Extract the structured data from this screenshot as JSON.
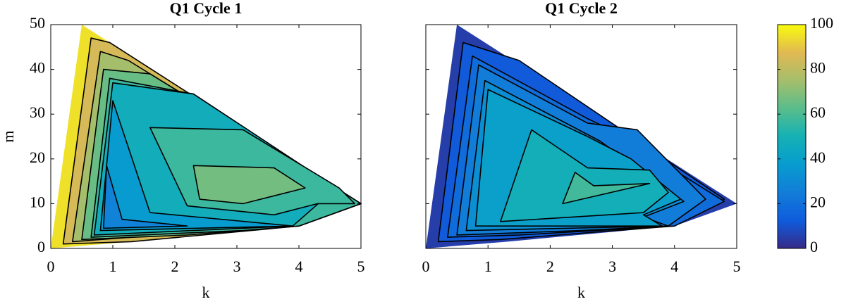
{
  "chart_data": [
    {
      "type": "contour",
      "title": "Q1 Cycle 1",
      "xlabel": "k",
      "ylabel": "m",
      "xlim": [
        0,
        5
      ],
      "ylim": [
        0,
        50
      ],
      "xticks": [
        0,
        1,
        2,
        3,
        4,
        5
      ],
      "yticks": [
        0,
        10,
        20,
        30,
        40,
        50
      ],
      "show_ytick_labels": true,
      "regions": [
        {
          "level": 95,
          "polygon": [
            [
              0,
              0
            ],
            [
              0.5,
              50
            ],
            [
              5,
              10
            ],
            [
              4,
              5
            ],
            [
              1.3,
              1.5
            ]
          ]
        },
        {
          "level": 85,
          "polygon": [
            [
              0.2,
              1
            ],
            [
              0.65,
              47
            ],
            [
              0.95,
              46
            ],
            [
              5,
              10
            ],
            [
              4,
              5
            ],
            [
              1.3,
              1.5
            ]
          ]
        },
        {
          "level": 75,
          "polygon": [
            [
              0.35,
              1.5
            ],
            [
              0.8,
              44
            ],
            [
              1.25,
              42
            ],
            [
              5,
              10
            ],
            [
              4,
              5
            ],
            [
              1.3,
              2.5
            ]
          ]
        },
        {
          "level": 65,
          "polygon": [
            [
              0.5,
              2
            ],
            [
              0.85,
              40
            ],
            [
              1.6,
              39
            ],
            [
              5,
              10
            ],
            [
              4,
              5
            ],
            [
              2.2,
              3
            ]
          ]
        },
        {
          "level": 57,
          "polygon": [
            [
              0.65,
              2.5
            ],
            [
              0.95,
              38
            ],
            [
              2.3,
              34.5
            ],
            [
              4.6,
              13.5
            ],
            [
              5,
              10
            ],
            [
              4,
              5
            ],
            [
              3.1,
              4
            ]
          ]
        },
        {
          "level": 47,
          "polygon": [
            [
              0.7,
              3
            ],
            [
              1,
              37
            ],
            [
              2.3,
              34.5
            ],
            [
              4.6,
              13.5
            ],
            [
              3.9,
              5
            ],
            [
              1.5,
              3.5
            ]
          ]
        },
        {
          "level": 37,
          "polygon": [
            [
              0.8,
              4
            ],
            [
              1,
              33
            ],
            [
              1.6,
              8
            ],
            [
              3.9,
              5
            ]
          ]
        },
        {
          "level": 27,
          "polygon": [
            [
              0.85,
              4.5
            ],
            [
              0.9,
              18.5
            ],
            [
              1.15,
              6.5
            ],
            [
              2.2,
              5
            ]
          ]
        },
        {
          "level": 57,
          "polygon": [
            [
              1.6,
              27
            ],
            [
              3.1,
              26.5
            ],
            [
              4.65,
              13.5
            ],
            [
              4.9,
              10
            ],
            [
              4.3,
              10
            ],
            [
              3.6,
              7.5
            ],
            [
              2.2,
              9.5
            ]
          ]
        },
        {
          "level": 67,
          "polygon": [
            [
              2.3,
              18.5
            ],
            [
              3.6,
              18
            ],
            [
              4.1,
              13.5
            ],
            [
              3.1,
              10
            ],
            [
              2.4,
              11
            ]
          ]
        }
      ]
    },
    {
      "type": "contour",
      "title": "Q1 Cycle 2",
      "xlabel": "k",
      "xlim": [
        0,
        5
      ],
      "ylim": [
        0,
        50
      ],
      "xticks": [
        0,
        1,
        2,
        3,
        4,
        5
      ],
      "yticks": [
        0,
        10,
        20,
        30,
        40,
        50
      ],
      "show_ytick_labels": false,
      "regions": [
        {
          "level": 5,
          "polygon": [
            [
              0,
              0
            ],
            [
              0.5,
              50
            ],
            [
              5,
              10
            ],
            [
              4,
              5
            ],
            [
              1.3,
              1.5
            ]
          ]
        },
        {
          "level": 12,
          "polygon": [
            [
              0.2,
              1.5
            ],
            [
              0.6,
              46
            ],
            [
              1.5,
              42
            ],
            [
              4.8,
              11
            ],
            [
              4,
              5
            ],
            [
              1.2,
              2
            ]
          ]
        },
        {
          "level": 18,
          "polygon": [
            [
              0.35,
              2.5
            ],
            [
              0.75,
              43
            ],
            [
              2.6,
              29
            ],
            [
              2.9,
              27
            ],
            [
              4.8,
              10.5
            ],
            [
              4,
              5
            ],
            [
              1.5,
              3
            ]
          ]
        },
        {
          "level": 25,
          "polygon": [
            [
              0.5,
              3
            ],
            [
              0.85,
              41
            ],
            [
              2.6,
              28
            ],
            [
              3.4,
              26.5
            ],
            [
              4.5,
              11
            ],
            [
              3.9,
              5
            ],
            [
              2.5,
              4
            ]
          ]
        },
        {
          "level": 32,
          "polygon": [
            [
              0.65,
              4
            ],
            [
              0.95,
              37.5
            ],
            [
              2.8,
              24
            ],
            [
              4.15,
              10.5
            ],
            [
              3.5,
              7
            ],
            [
              3.9,
              5
            ]
          ]
        },
        {
          "level": 40,
          "polygon": [
            [
              0.8,
              5
            ],
            [
              1,
              35.5
            ],
            [
              2.6,
              25
            ],
            [
              3.3,
              20
            ],
            [
              4.1,
              11
            ],
            [
              3.5,
              7.5
            ],
            [
              3.8,
              5
            ]
          ]
        },
        {
          "level": 48,
          "polygon": [
            [
              1.2,
              6
            ],
            [
              1.7,
              26.5
            ],
            [
              2.6,
              18
            ],
            [
              3.6,
              17.5
            ],
            [
              3.9,
              12.5
            ],
            [
              3.5,
              8
            ]
          ]
        },
        {
          "level": 58,
          "polygon": [
            [
              2.2,
              10
            ],
            [
              2.4,
              17
            ],
            [
              2.7,
              14
            ],
            [
              3.6,
              14.5
            ]
          ]
        }
      ]
    }
  ],
  "colorbar": {
    "clim": [
      0,
      100
    ],
    "ticks": [
      0,
      20,
      40,
      60,
      80,
      100
    ],
    "colormap": [
      "#352a87",
      "#0f5cdd",
      "#127dd8",
      "#079ccf",
      "#15b1b4",
      "#59bd8c",
      "#a5be6b",
      "#e1b952",
      "#f9fb0e"
    ]
  }
}
